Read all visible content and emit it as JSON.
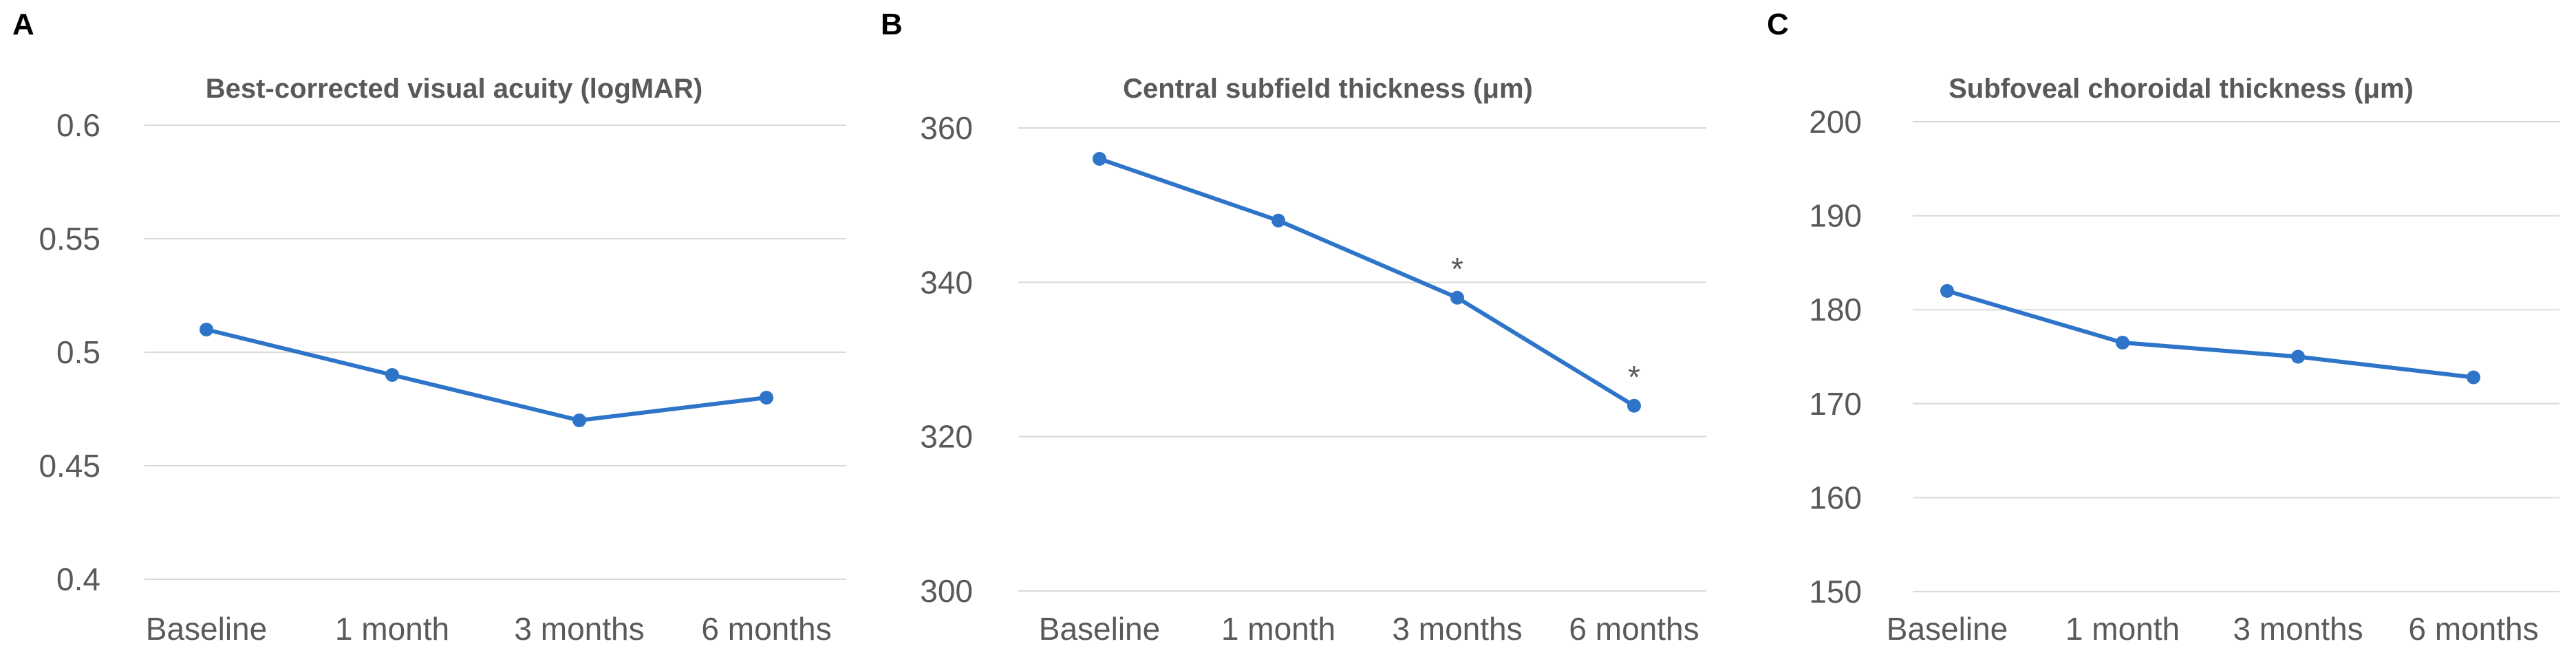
{
  "figure": {
    "line_color": "#2e75c9",
    "grid_color": "#d9d9d9",
    "text_color": "#595959"
  },
  "chart_data": [
    {
      "type": "line",
      "panel_label": "A",
      "title": "Best-corrected visual acuity  (logMAR)",
      "categories": [
        "Baseline",
        "1 month",
        "3 months",
        "6 months"
      ],
      "series": [
        {
          "values": [
            0.51,
            0.49,
            0.47,
            0.48
          ]
        }
      ],
      "ylim": [
        0.4,
        0.6
      ],
      "yticks": [
        0.4,
        0.45,
        0.5,
        0.55,
        0.6
      ],
      "ytick_labels": [
        "0.4",
        "0.45",
        "0.5",
        "0.55",
        "0.6"
      ],
      "annotations": [],
      "grid": true,
      "legend": "none"
    },
    {
      "type": "line",
      "panel_label": "B",
      "title": "Central subfield thickness (μm)",
      "categories": [
        "Baseline",
        "1 month",
        "3 months",
        "6 months"
      ],
      "series": [
        {
          "values": [
            356,
            348,
            338,
            324
          ]
        }
      ],
      "ylim": [
        300,
        360
      ],
      "yticks": [
        300,
        320,
        340,
        360
      ],
      "ytick_labels": [
        "300",
        "320",
        "340",
        "360"
      ],
      "annotations": [
        {
          "category": "3 months",
          "text": "*"
        },
        {
          "category": "6 months",
          "text": "*"
        }
      ],
      "grid": true,
      "legend": "none"
    },
    {
      "type": "line",
      "panel_label": "C",
      "title": "Subfoveal choroidal thickness (μm)",
      "categories": [
        "Baseline",
        "1 month",
        "3 months",
        "6 months"
      ],
      "series": [
        {
          "values": [
            182,
            176.5,
            175,
            172.8
          ]
        }
      ],
      "ylim": [
        150,
        200
      ],
      "yticks": [
        150,
        160,
        170,
        180,
        190,
        200
      ],
      "ytick_labels": [
        "150",
        "160",
        "170",
        "180",
        "190",
        "200"
      ],
      "annotations": [],
      "grid": true,
      "legend": "none"
    }
  ]
}
